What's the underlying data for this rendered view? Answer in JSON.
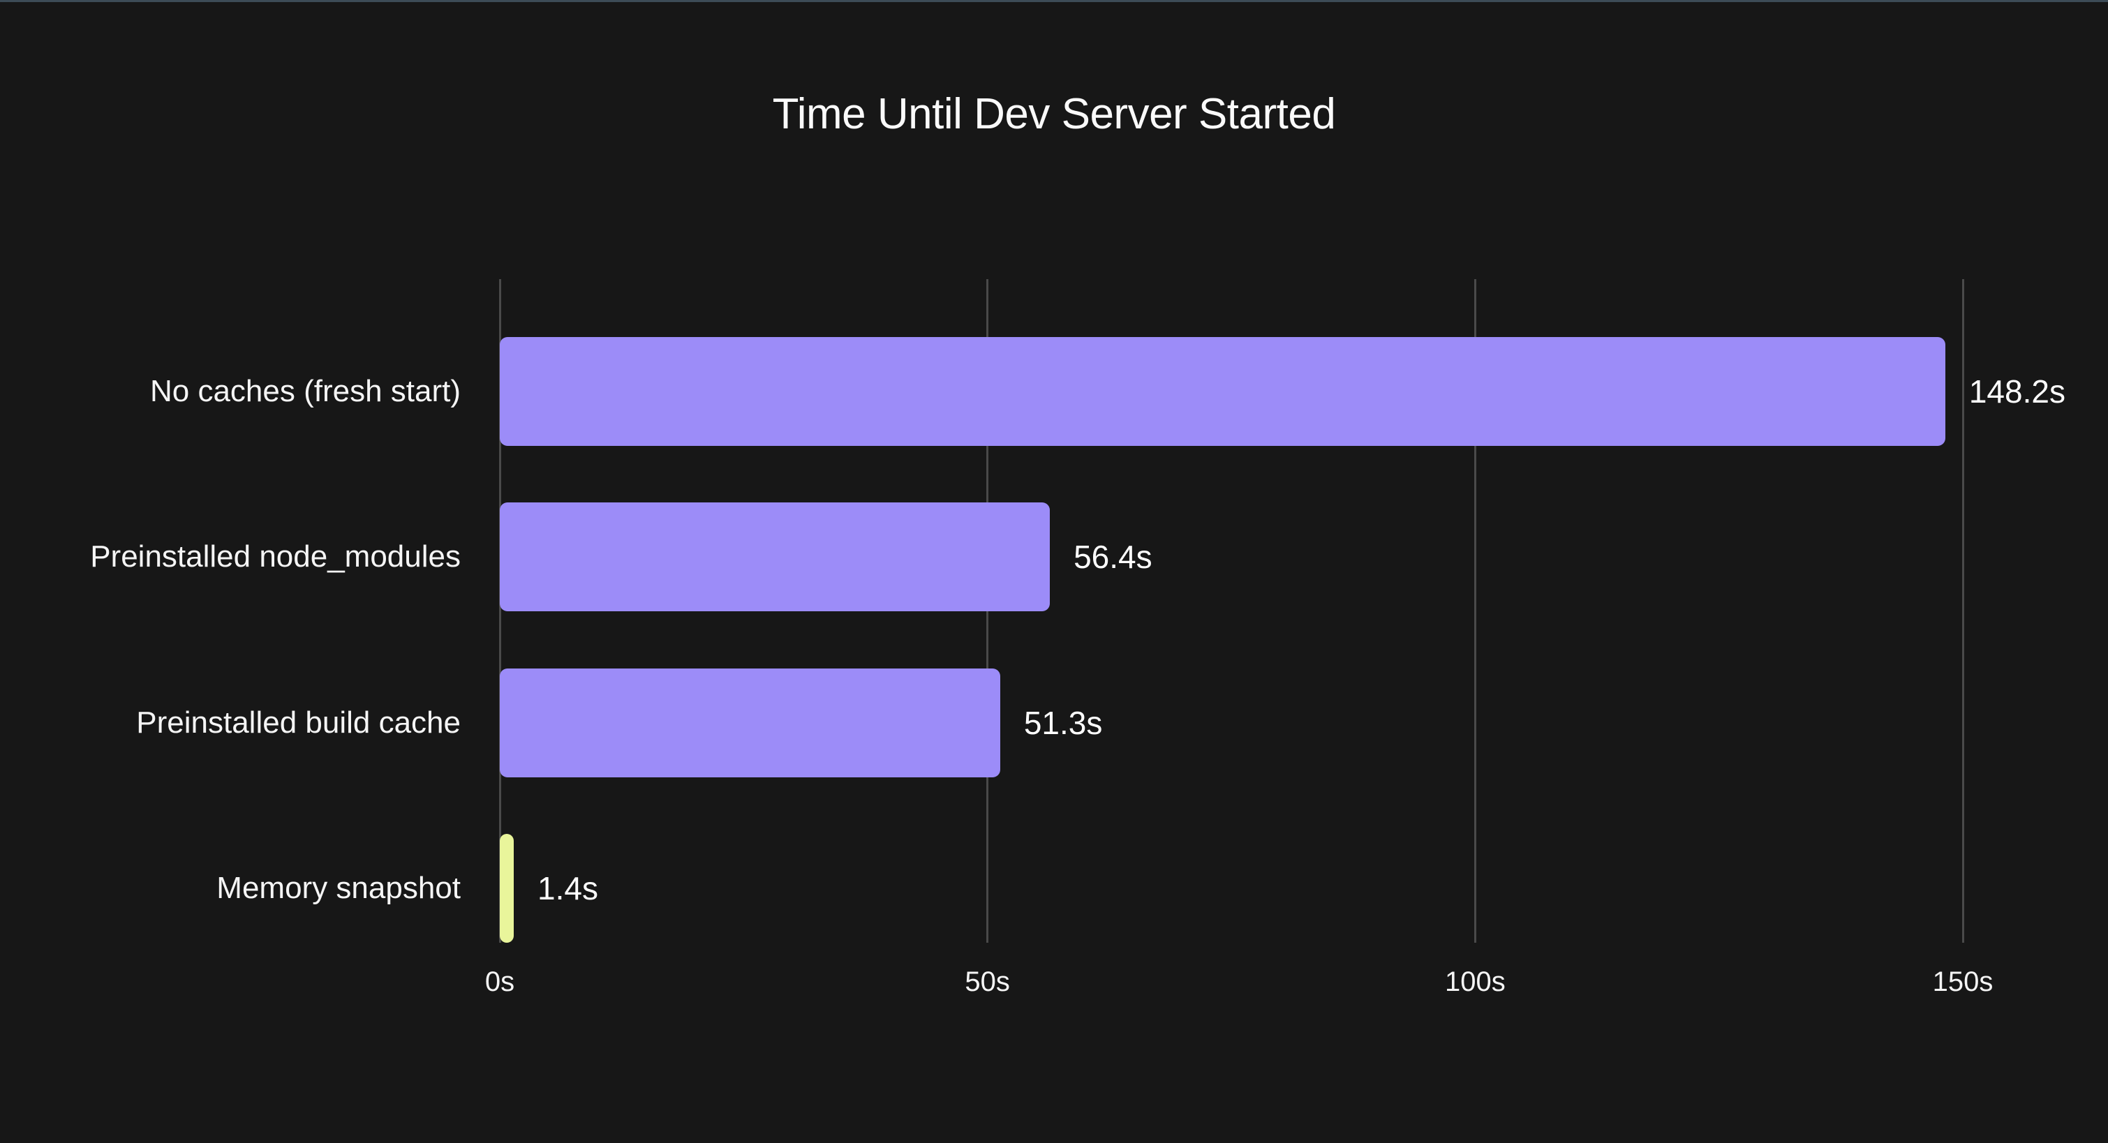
{
  "chart_data": {
    "type": "bar",
    "orientation": "horizontal",
    "title": "Time Until Dev Server Started",
    "categories": [
      "No caches (fresh start)",
      "Preinstalled node_modules",
      "Preinstalled build cache",
      "Memory snapshot"
    ],
    "values": [
      148.2,
      56.4,
      51.3,
      1.4
    ],
    "value_labels": [
      "148.2s",
      "56.4s",
      "51.3s",
      "1.4s"
    ],
    "bar_colors": [
      "#9c8cf8",
      "#9c8cf8",
      "#9c8cf8",
      "#e9f59b"
    ],
    "unit": "seconds",
    "xlim": [
      0,
      150
    ],
    "x_tick_values": [
      0,
      50,
      100,
      150
    ],
    "x_tick_labels": [
      "0s",
      "50s",
      "100s",
      "150s"
    ],
    "grid": true,
    "legend_position": "none"
  },
  "colors": {
    "background": "#171717",
    "window_top_edge": "#3d4c57",
    "gridline": "#4a4a4a",
    "title_text": "#fafafa",
    "label_text": "#f5f5f5",
    "value_text": "#ffffff",
    "bar_purple": "#9c8cf8",
    "bar_lime": "#e9f59b"
  }
}
